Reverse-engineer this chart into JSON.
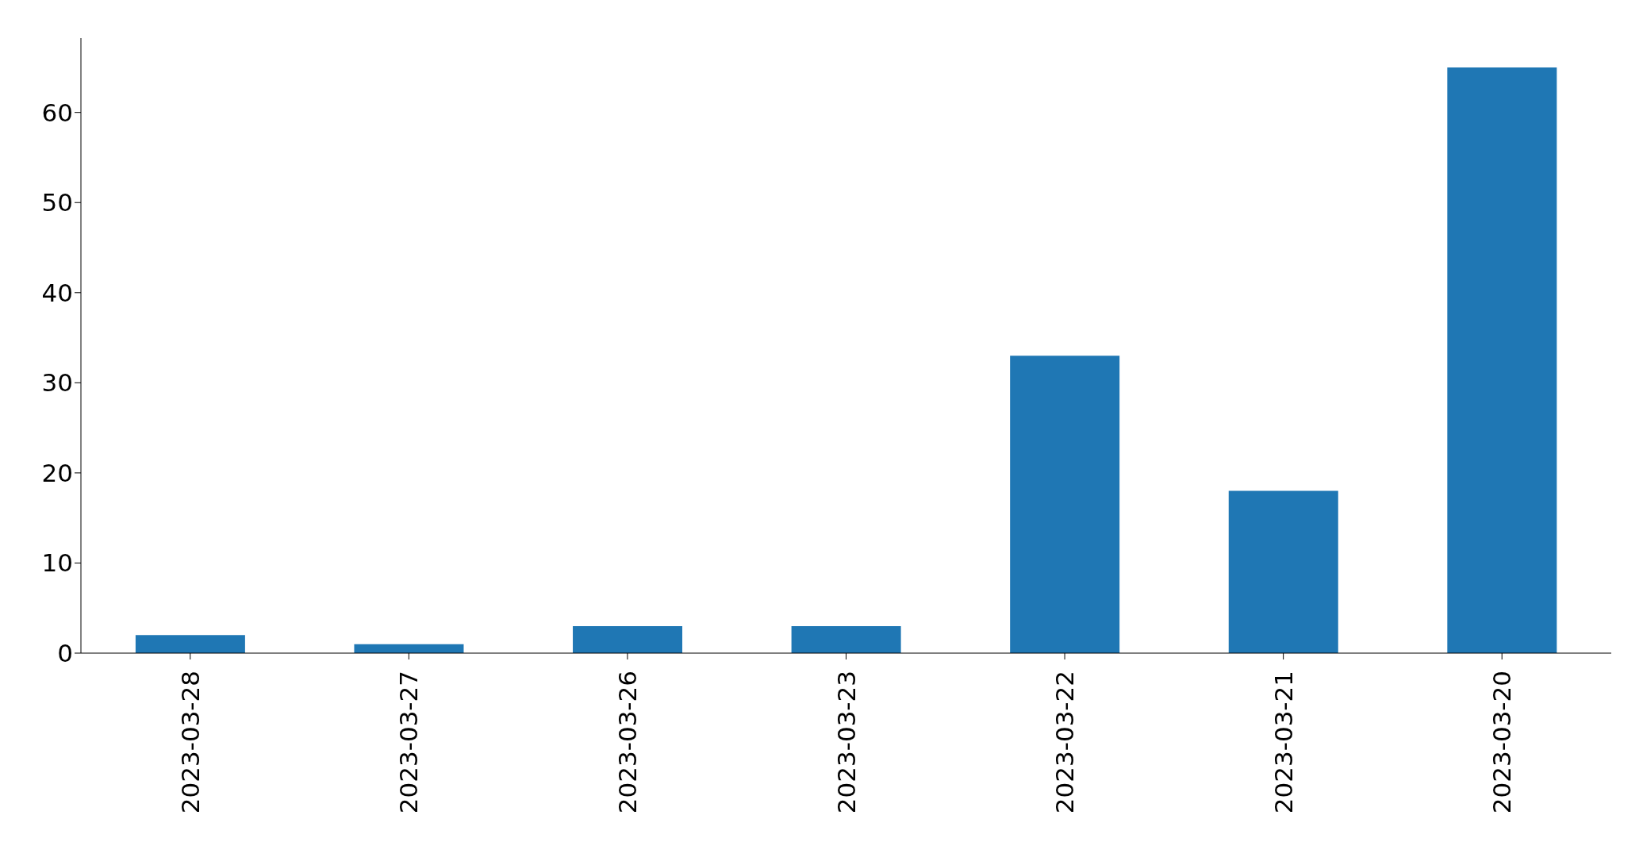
{
  "chart_data": {
    "type": "bar",
    "categories": [
      "2023-03-28",
      "2023-03-27",
      "2023-03-26",
      "2023-03-23",
      "2023-03-22",
      "2023-03-21",
      "2023-03-20"
    ],
    "values": [
      2,
      1,
      3,
      3,
      33,
      18,
      65
    ],
    "color": "#1f77b4",
    "ylim": [
      0,
      68.25
    ],
    "yticks": [
      0,
      10,
      20,
      30,
      40,
      50,
      60
    ]
  }
}
